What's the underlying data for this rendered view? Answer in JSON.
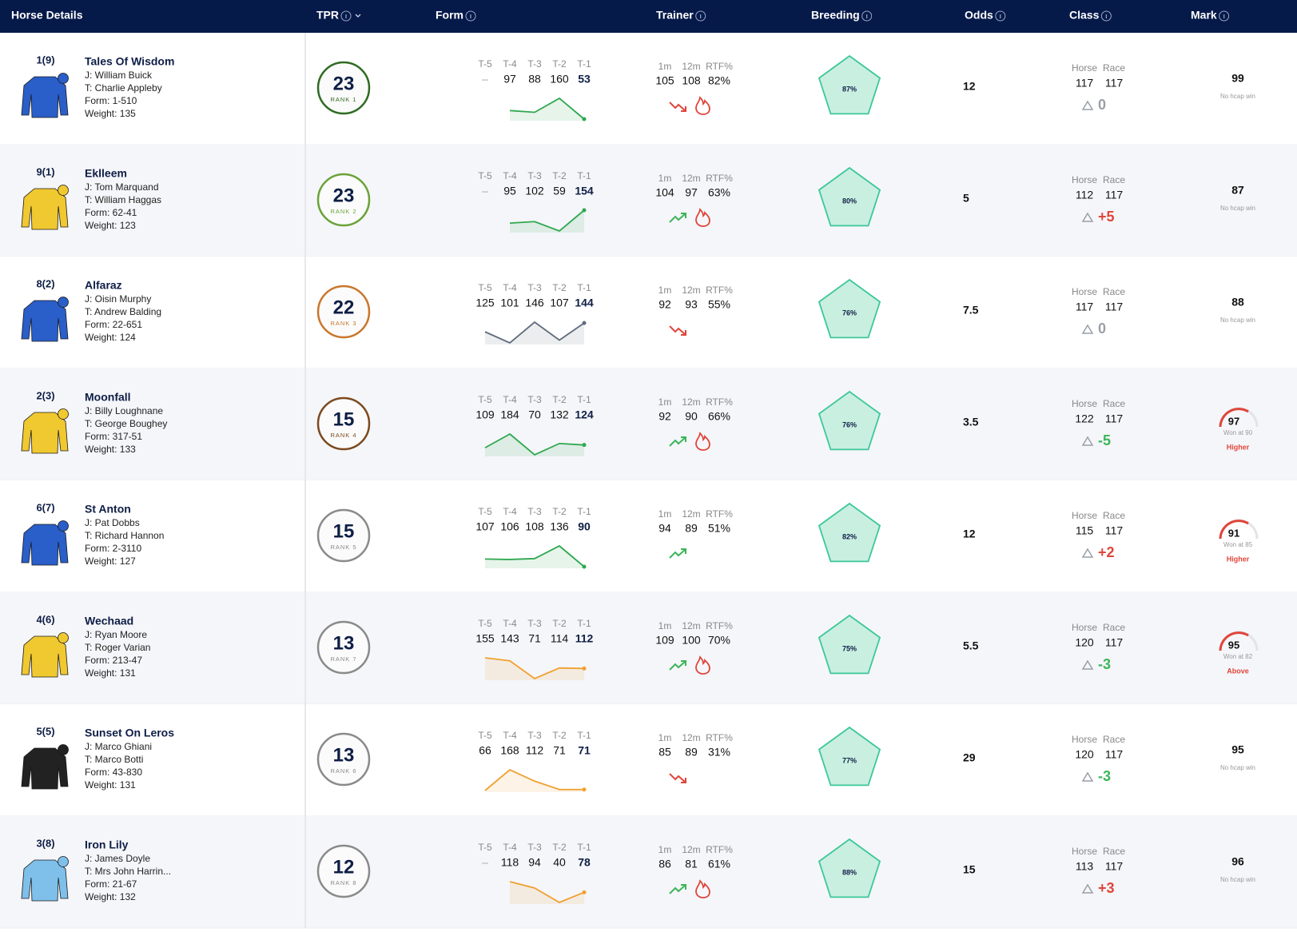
{
  "header": {
    "columns": [
      "Horse Details",
      "TPR",
      "Form",
      "Trainer",
      "Breeding",
      "Odds",
      "Class",
      "Mark"
    ]
  },
  "rows": [
    {
      "draw": "1(9)",
      "name": "Tales Of Wisdom",
      "jockey": "J: William Buick",
      "trainer": "T: Charlie Appleby",
      "form": "Form: 1-510",
      "weight": "Weight: 135",
      "silk": "#2a5ec8",
      "tpr": 23,
      "rank": "RANK 1",
      "tpr_color": "#2f6b22",
      "form_labels": [
        "T-5",
        "T-4",
        "T-3",
        "T-2",
        "T-1"
      ],
      "form_values": [
        "–",
        97,
        88,
        160,
        53
      ],
      "form_color": "#2fa84f",
      "trainer_labels": [
        "1m",
        "12m",
        "RTF%"
      ],
      "trainer_values": [
        105,
        108,
        "82%"
      ],
      "trend": "down",
      "hot": true,
      "breeding": "87%",
      "odds": 12,
      "class_labels": [
        "Horse",
        "Race"
      ],
      "class_values": [
        117,
        117
      ],
      "class_delta": "0",
      "delta_color": "#9aa0a8",
      "mark": 99,
      "mark_note": "No hcap win"
    },
    {
      "draw": "9(1)",
      "name": "Eklleem",
      "jockey": "J: Tom Marquand",
      "trainer": "T: William Haggas",
      "form": "Form: 62-41",
      "weight": "Weight: 123",
      "silk": "#f0c830",
      "tpr": 23,
      "rank": "RANK 2",
      "tpr_color": "#6aa33a",
      "form_labels": [
        "T-5",
        "T-4",
        "T-3",
        "T-2",
        "T-1"
      ],
      "form_values": [
        "–",
        95,
        102,
        59,
        154
      ],
      "form_color": "#2fa84f",
      "trainer_labels": [
        "1m",
        "12m",
        "RTF%"
      ],
      "trainer_values": [
        104,
        97,
        "63%"
      ],
      "trend": "up",
      "hot": true,
      "breeding": "80%",
      "odds": 5,
      "class_labels": [
        "Horse",
        "Race"
      ],
      "class_values": [
        112,
        117
      ],
      "class_delta": "+5",
      "delta_color": "#e0453a",
      "mark": 87,
      "mark_note": "No hcap win"
    },
    {
      "draw": "8(2)",
      "name": "Alfaraz",
      "jockey": "J: Oisin Murphy",
      "trainer": "T: Andrew Balding",
      "form": "Form: 22-651",
      "weight": "Weight: 124",
      "silk": "#2a5ec8",
      "tpr": 22,
      "rank": "RANK 3",
      "tpr_color": "#c9772c",
      "form_labels": [
        "T-5",
        "T-4",
        "T-3",
        "T-2",
        "T-1"
      ],
      "form_values": [
        125,
        101,
        146,
        107,
        144
      ],
      "form_color": "#5f6b7d",
      "trainer_labels": [
        "1m",
        "12m",
        "RTF%"
      ],
      "trainer_values": [
        92,
        93,
        "55%"
      ],
      "trend": "down",
      "hot": false,
      "breeding": "76%",
      "odds": 7.5,
      "class_labels": [
        "Horse",
        "Race"
      ],
      "class_values": [
        117,
        117
      ],
      "class_delta": "0",
      "delta_color": "#9aa0a8",
      "mark": 88,
      "mark_note": "No hcap win"
    },
    {
      "draw": "2(3)",
      "name": "Moonfall",
      "jockey": "J: Billy Loughnane",
      "trainer": "T: George Boughey",
      "form": "Form: 317-51",
      "weight": "Weight: 133",
      "silk": "#f0c830",
      "tpr": 15,
      "rank": "RANK 4",
      "tpr_color": "#7b4a1f",
      "form_labels": [
        "T-5",
        "T-4",
        "T-3",
        "T-2",
        "T-1"
      ],
      "form_values": [
        109,
        184,
        70,
        132,
        124
      ],
      "form_color": "#2fa84f",
      "trainer_labels": [
        "1m",
        "12m",
        "RTF%"
      ],
      "trainer_values": [
        92,
        90,
        "66%"
      ],
      "trend": "up",
      "hot": true,
      "breeding": "76%",
      "odds": 3.5,
      "class_labels": [
        "Horse",
        "Race"
      ],
      "class_values": [
        122,
        117
      ],
      "class_delta": "-5",
      "delta_color": "#3bb55a",
      "mark": 97,
      "mark_note": "Won at 90",
      "mark_status": "Higher"
    },
    {
      "draw": "6(7)",
      "name": "St Anton",
      "jockey": "J: Pat Dobbs",
      "trainer": "T: Richard Hannon",
      "form": "Form: 2-3110",
      "weight": "Weight: 127",
      "silk": "#2a5ec8",
      "tpr": 15,
      "rank": "RANK 5",
      "tpr_color": "#8a8a8a",
      "form_labels": [
        "T-5",
        "T-4",
        "T-3",
        "T-2",
        "T-1"
      ],
      "form_values": [
        107,
        106,
        108,
        136,
        90
      ],
      "form_color": "#2fa84f",
      "trainer_labels": [
        "1m",
        "12m",
        "RTF%"
      ],
      "trainer_values": [
        94,
        89,
        "51%"
      ],
      "trend": "up",
      "hot": false,
      "breeding": "82%",
      "odds": 12,
      "class_labels": [
        "Horse",
        "Race"
      ],
      "class_values": [
        115,
        117
      ],
      "class_delta": "+2",
      "delta_color": "#e0453a",
      "mark": 91,
      "mark_note": "Won at 85",
      "mark_status": "Higher"
    },
    {
      "draw": "4(6)",
      "name": "Wechaad",
      "jockey": "J: Ryan Moore",
      "trainer": "T: Roger Varian",
      "form": "Form: 213-47",
      "weight": "Weight: 131",
      "silk": "#f0c830",
      "tpr": 13,
      "rank": "RANK 7",
      "tpr_color": "#8a8a8a",
      "form_labels": [
        "T-5",
        "T-4",
        "T-3",
        "T-2",
        "T-1"
      ],
      "form_values": [
        155,
        143,
        71,
        114,
        112
      ],
      "form_color": "#f0a030",
      "trainer_labels": [
        "1m",
        "12m",
        "RTF%"
      ],
      "trainer_values": [
        109,
        100,
        "70%"
      ],
      "trend": "up",
      "hot": true,
      "breeding": "75%",
      "odds": 5.5,
      "class_labels": [
        "Horse",
        "Race"
      ],
      "class_values": [
        120,
        117
      ],
      "class_delta": "-3",
      "delta_color": "#3bb55a",
      "mark": 95,
      "mark_note": "Won at 82",
      "mark_status": "Above"
    },
    {
      "draw": "5(5)",
      "name": "Sunset On Leros",
      "jockey": "J: Marco Ghiani",
      "trainer": "T: Marco Botti",
      "form": "Form: 43-830",
      "weight": "Weight: 131",
      "silk": "#222222",
      "tpr": 13,
      "rank": "RANK 6",
      "tpr_color": "#8a8a8a",
      "form_labels": [
        "T-5",
        "T-4",
        "T-3",
        "T-2",
        "T-1"
      ],
      "form_values": [
        66,
        168,
        112,
        71,
        71
      ],
      "form_color": "#f0a030",
      "trainer_labels": [
        "1m",
        "12m",
        "RTF%"
      ],
      "trainer_values": [
        85,
        89,
        "31%"
      ],
      "trend": "down",
      "hot": false,
      "breeding": "77%",
      "odds": 29,
      "class_labels": [
        "Horse",
        "Race"
      ],
      "class_values": [
        120,
        117
      ],
      "class_delta": "-3",
      "delta_color": "#3bb55a",
      "mark": 95,
      "mark_note": "No hcap win"
    },
    {
      "draw": "3(8)",
      "name": "Iron Lily",
      "jockey": "J: James Doyle",
      "trainer": "T: Mrs John Harrin...",
      "form": "Form: 21-67",
      "weight": "Weight: 132",
      "silk": "#7ec0ea",
      "tpr": 12,
      "rank": "RANK 8",
      "tpr_color": "#8a8a8a",
      "form_labels": [
        "T-5",
        "T-4",
        "T-3",
        "T-2",
        "T-1"
      ],
      "form_values": [
        "–",
        118,
        94,
        40,
        78
      ],
      "form_color": "#f0a030",
      "trainer_labels": [
        "1m",
        "12m",
        "RTF%"
      ],
      "trainer_values": [
        86,
        81,
        "61%"
      ],
      "trend": "up",
      "hot": true,
      "breeding": "88%",
      "odds": 15,
      "class_labels": [
        "Horse",
        "Race"
      ],
      "class_values": [
        113,
        117
      ],
      "class_delta": "+3",
      "delta_color": "#e0453a",
      "mark": 96,
      "mark_note": "No hcap win"
    }
  ]
}
